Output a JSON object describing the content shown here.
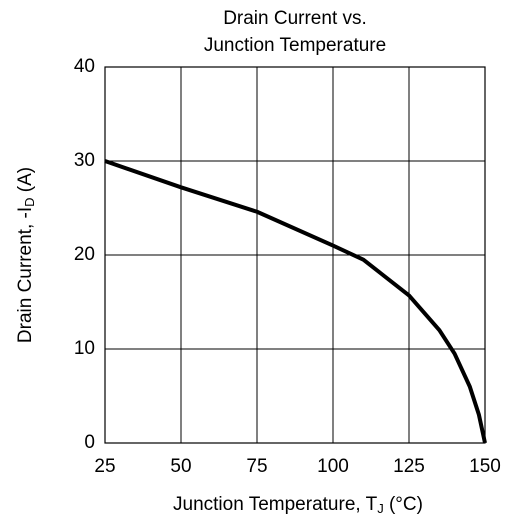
{
  "chart_data": {
    "type": "line",
    "title": [
      "Drain Current vs.",
      "Junction Temperature"
    ],
    "xlabel": [
      "Junction Temperature, T",
      "J",
      " (°C)"
    ],
    "ylabel": [
      "Drain Current, -I",
      "D",
      " (A)"
    ],
    "x": [
      25,
      50,
      75,
      100,
      110,
      125,
      135,
      140,
      145,
      148,
      150
    ],
    "values": [
      30,
      27.2,
      24.6,
      21,
      19.5,
      15.7,
      12,
      9.5,
      6,
      3,
      0
    ],
    "color": "#000000",
    "xlim": [
      25,
      150
    ],
    "xticks": [
      25,
      50,
      75,
      100,
      125,
      150
    ],
    "ylim": [
      0,
      40
    ],
    "yticks": [
      0,
      10,
      20,
      30,
      40
    ],
    "grid": true
  }
}
